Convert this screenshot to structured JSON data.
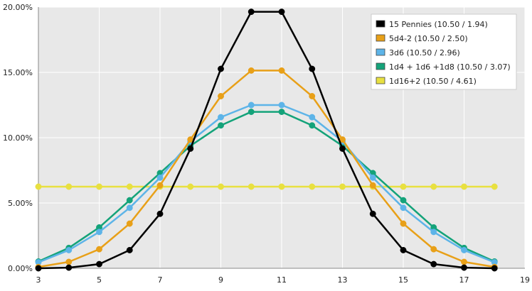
{
  "chart_data": {
    "type": "line",
    "title": "",
    "xlabel": "",
    "ylabel": "",
    "x_range": [
      3,
      19
    ],
    "y_range": [
      0,
      20
    ],
    "x_ticks": [
      3,
      5,
      7,
      9,
      11,
      13,
      15,
      17,
      19
    ],
    "y_ticks": [
      0,
      5,
      10,
      15,
      20
    ],
    "x_tick_labels": [
      "3",
      "5",
      "7",
      "9",
      "11",
      "13",
      "15",
      "17",
      "19"
    ],
    "y_tick_labels": [
      "0.00%",
      "5.00%",
      "10.00%",
      "15.00%",
      "20.00%"
    ],
    "grid": true,
    "legend_position": "top-right",
    "plot_background": "#e8e8e8",
    "x": [
      3,
      4,
      5,
      6,
      7,
      8,
      9,
      10,
      11,
      12,
      13,
      14,
      15,
      16,
      17,
      18
    ],
    "series": [
      {
        "name": "1d16+2",
        "legend_label": "1d16+2 (10.50 / 4.61)",
        "color": "#e8e040",
        "values": [
          6.25,
          6.25,
          6.25,
          6.25,
          6.25,
          6.25,
          6.25,
          6.25,
          6.25,
          6.25,
          6.25,
          6.25,
          6.25,
          6.25,
          6.25,
          6.25
        ]
      },
      {
        "name": "1d4 + 1d6 +1d8",
        "legend_label": "1d4 + 1d6 +1d8 (10.50 / 3.07)",
        "color": "#14a37a",
        "values": [
          0.52,
          1.56,
          3.13,
          5.21,
          7.29,
          9.38,
          10.94,
          11.98,
          11.98,
          10.94,
          9.38,
          7.29,
          5.21,
          3.13,
          1.56,
          0.52
        ]
      },
      {
        "name": "3d6",
        "legend_label": "3d6 (10.50 / 2.96)",
        "color": "#5db4e8",
        "values": [
          0.46,
          1.39,
          2.78,
          4.63,
          6.94,
          9.72,
          11.57,
          12.5,
          12.5,
          11.57,
          9.72,
          6.94,
          4.63,
          2.78,
          1.39,
          0.46
        ]
      },
      {
        "name": "5d4-2",
        "legend_label": "5d4-2 (10.50 / 2.50)",
        "color": "#e8a018",
        "values": [
          0.1,
          0.49,
          1.46,
          3.42,
          6.35,
          9.86,
          13.18,
          15.14,
          15.14,
          13.18,
          9.86,
          6.35,
          3.42,
          1.46,
          0.49,
          0.1
        ]
      },
      {
        "name": "15 Pennies",
        "legend_label": "15 Pennies (10.50 / 1.94)",
        "color": "#000000",
        "values": [
          0.0,
          0.05,
          0.32,
          1.39,
          4.17,
          9.16,
          15.27,
          19.64,
          19.64,
          15.27,
          9.16,
          4.17,
          1.39,
          0.32,
          0.05,
          0.0
        ]
      }
    ],
    "legend_order": [
      "15 Pennies",
      "5d4-2",
      "3d6",
      "1d4 + 1d6 +1d8",
      "1d16+2"
    ]
  }
}
